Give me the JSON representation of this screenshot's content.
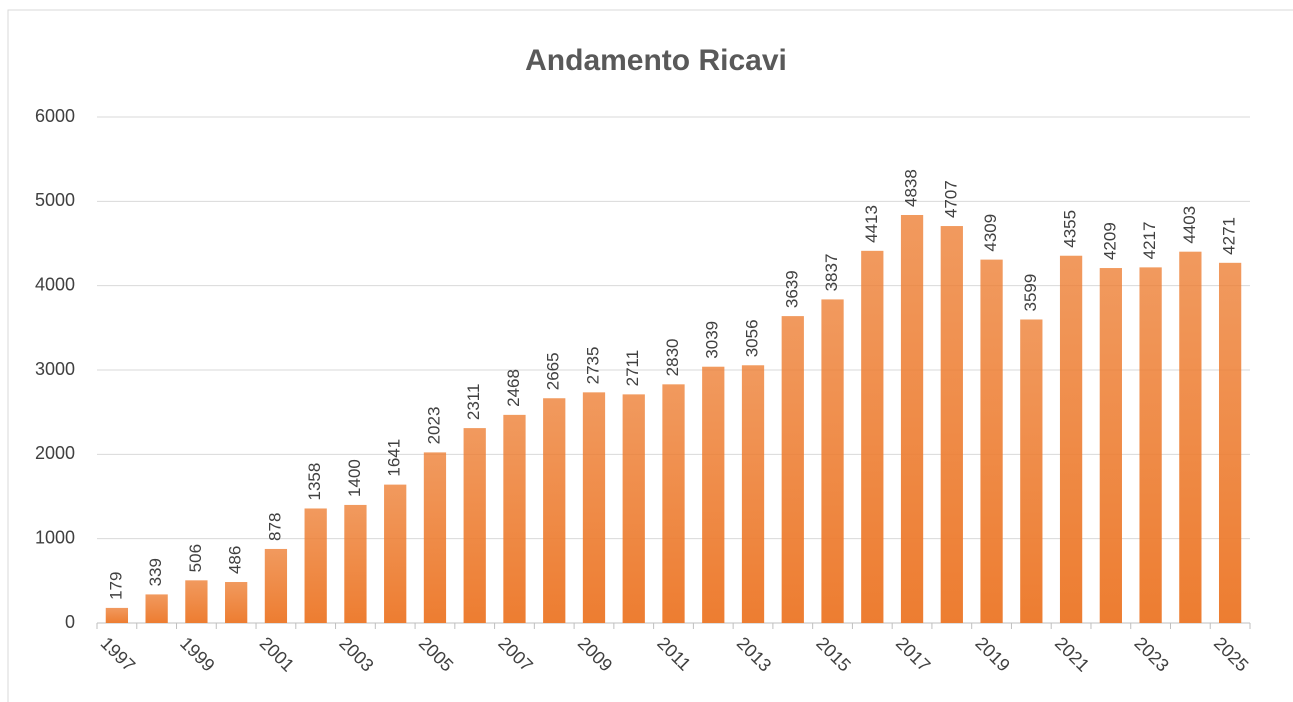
{
  "chart_data": {
    "type": "bar",
    "title": "Andamento Ricavi",
    "categories": [
      "1997",
      null,
      "1999",
      null,
      "2001",
      null,
      "2003",
      null,
      "2005",
      null,
      "2007",
      null,
      "2009",
      null,
      "2011",
      null,
      "2013",
      null,
      "2015",
      null,
      "2017",
      null,
      "2019",
      null,
      "2021",
      null,
      "2023",
      null,
      "2025"
    ],
    "values": [
      179,
      339,
      506,
      486,
      878,
      1358,
      1400,
      1641,
      2023,
      2311,
      2468,
      2665,
      2735,
      2711,
      2830,
      3039,
      3056,
      3639,
      3837,
      4413,
      4838,
      4707,
      4309,
      3599,
      4355,
      4209,
      4217,
      4403,
      4271
    ],
    "color": "#ed7d31",
    "ylim": [
      0,
      6000
    ],
    "yticks": [
      0,
      1000,
      2000,
      3000,
      4000,
      5000,
      6000
    ],
    "grid": true
  }
}
